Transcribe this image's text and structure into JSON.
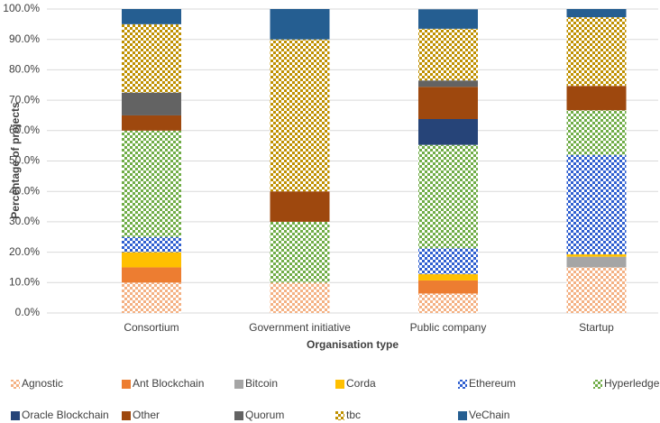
{
  "chart_data": {
    "type": "stacked_bar",
    "x_label": "Organisation type",
    "y_label": "Percentage of projects",
    "categories": [
      "Consortium",
      "Government initiative",
      "Public company",
      "Startup"
    ],
    "ylim": [
      0,
      100
    ],
    "yticks": [
      {
        "value": 0,
        "label": "0.0%"
      },
      {
        "value": 10,
        "label": "10.0%"
      },
      {
        "value": 20,
        "label": "20.0%"
      },
      {
        "value": 30,
        "label": "30.0%"
      },
      {
        "value": 40,
        "label": "40.0%"
      },
      {
        "value": 50,
        "label": "50.0%"
      },
      {
        "value": 60,
        "label": "60.0%"
      },
      {
        "value": 70,
        "label": "70.0%"
      },
      {
        "value": 80,
        "label": "80.0%"
      },
      {
        "value": 90,
        "label": "90.0%"
      },
      {
        "value": 100,
        "label": "100.0%"
      }
    ],
    "grid": true,
    "legend": "bottom",
    "series": [
      {
        "name": "Agnostic",
        "color": "#f4b183",
        "pattern": "checker",
        "values": [
          10,
          10,
          6.4,
          15
        ]
      },
      {
        "name": "Ant Blockchain",
        "color": "#ed7d31",
        "values": [
          5,
          0,
          4.3,
          0
        ]
      },
      {
        "name": "Bitcoin",
        "color": "#a5a5a5",
        "values": [
          0,
          0,
          0,
          3.5
        ]
      },
      {
        "name": "Corda",
        "color": "#ffc000",
        "values": [
          5,
          0,
          2.1,
          0.8
        ]
      },
      {
        "name": "Ethereum",
        "color": "#2f5fd0",
        "pattern": "checker",
        "values": [
          5,
          0,
          8.5,
          32.7
        ]
      },
      {
        "name": "Hyperledger",
        "color": "#70ad47",
        "pattern": "checker",
        "values": [
          35,
          20,
          34,
          14.7
        ]
      },
      {
        "name": "Oracle Blockchain",
        "color": "#264478",
        "values": [
          0,
          0,
          8.5,
          0
        ]
      },
      {
        "name": "Other",
        "color": "#9e480e",
        "values": [
          5,
          10,
          10.6,
          8
        ]
      },
      {
        "name": "Quorum",
        "color": "#636363",
        "values": [
          7.5,
          0,
          2.1,
          0
        ]
      },
      {
        "name": "tbc",
        "color": "#bf9000",
        "pattern": "checker",
        "values": [
          22.5,
          50,
          17,
          22.6
        ]
      },
      {
        "name": "VeChain",
        "color": "#255e91",
        "values": [
          5,
          10,
          6.4,
          2.7
        ]
      }
    ]
  }
}
